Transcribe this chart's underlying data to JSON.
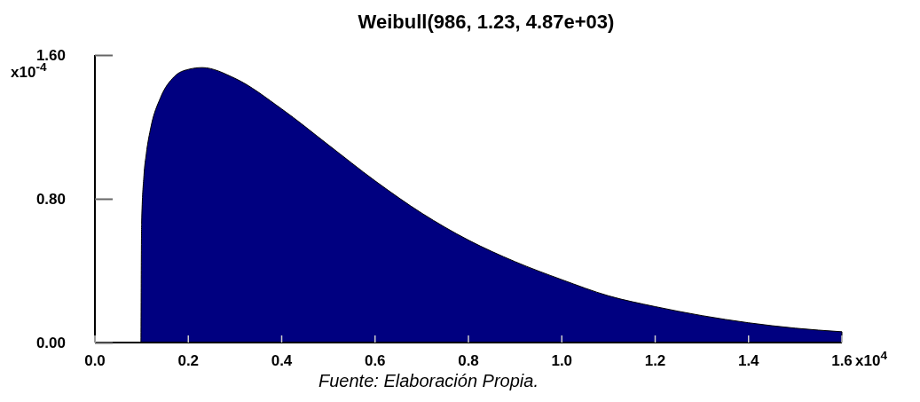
{
  "chart_data": {
    "type": "area",
    "title": "Weibull(986, 1.23, 4.87e+03)",
    "ylabel": "x10$^{-4}$",
    "annotations": [
      "Fuente: Elaboración Propia."
    ],
    "x": [
      0.0986,
      0.1,
      0.105,
      0.11,
      0.12,
      0.14,
      0.17,
      0.2,
      0.23,
      0.3,
      0.4,
      0.5,
      0.6,
      0.7,
      0.8,
      0.9,
      1.0,
      1.1,
      1.2,
      1.3,
      1.4,
      1.5,
      1.6
    ],
    "series": [
      {
        "color": "#000080",
        "values": [
          0,
          0.66,
          0.93,
          1.05,
          1.2,
          1.36,
          1.48,
          1.52,
          1.53,
          1.47,
          1.3,
          1.1,
          0.9,
          0.72,
          0.57,
          0.45,
          0.35,
          0.26,
          0.2,
          0.15,
          0.11,
          0.08,
          0.06
        ]
      }
    ],
    "xlim": [
      0,
      1.6
    ],
    "xticks": [
      {
        "value": 0,
        "label": "0.0"
      },
      {
        "value": 0.2,
        "label": "0.2"
      },
      {
        "value": 0.4,
        "label": "0.4"
      },
      {
        "value": 0.6,
        "label": "0.6"
      },
      {
        "value": 0.8,
        "label": "0.8"
      },
      {
        "value": 1,
        "label": "1.0"
      },
      {
        "value": 1.2,
        "label": "1.2"
      },
      {
        "value": 1.4,
        "label": "1.4"
      },
      {
        "value": 1.6,
        "label": "1.6"
      }
    ],
    "xlabel": "x10$^{4}$",
    "ylim": [
      0,
      1.6
    ],
    "yticks": [
      {
        "value": 0,
        "label": "0.00"
      },
      {
        "value": 0.8,
        "label": "0.80"
      },
      {
        "value": 1.6,
        "label": "1.60"
      }
    ],
    "grid": false
  }
}
